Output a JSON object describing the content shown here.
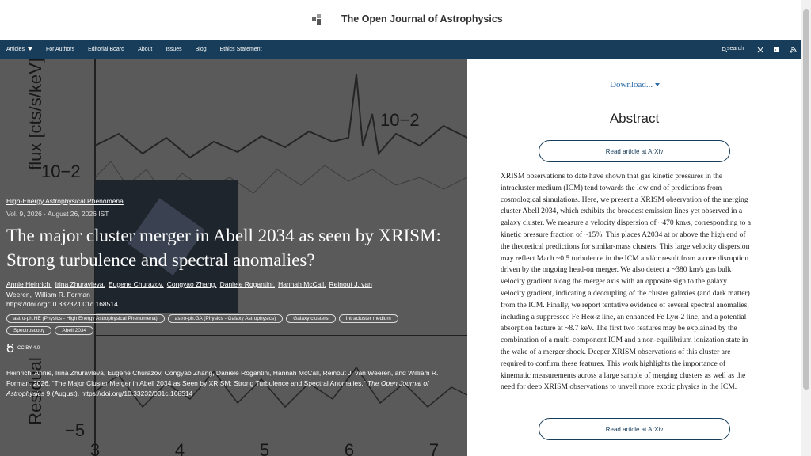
{
  "header": {
    "title": "The Open Journal of Astrophysics"
  },
  "nav": {
    "items": [
      "Articles",
      "For Authors",
      "Editorial Board",
      "About",
      "Issues",
      "Blog",
      "Ethics Statement"
    ],
    "search": "search"
  },
  "hero_plot": {
    "y_label": "flux [cts/s/keV]",
    "tick_upper": "10−2",
    "tick_left": "10−2",
    "residual_label": "Residual",
    "tick_residual": "−5",
    "x_ticks": [
      "3",
      "4",
      "5",
      "6",
      "7"
    ]
  },
  "article": {
    "category": "High-Energy Astrophysical Phenomena",
    "meta": "Vol. 9, 2026 · August 26, 2026 IST",
    "title": "The major cluster merger in Abell 2034 as seen by XRISM: Strong turbulence and spectral anomalies?",
    "authors": [
      "Annie Heinrich,",
      "Irina Zhuravleva,",
      "Eugene Churazov,",
      "Congyao Zhang,",
      "Daniele Rogantini,",
      "Hannah McCall,",
      "Reinout J. van Weeren,",
      "William R. Forman"
    ],
    "doi": "https://doi.org/10.33232/001c.168514",
    "tags": [
      "astro-ph.HE (Physics - High Energy Astrophysical Phenomena)",
      "astro-ph.GA (Physics - Galaxy Astrophysics)",
      "Galaxy clusters",
      "Intracluster medium",
      "Spectroscopy",
      "Abell 2034"
    ],
    "license": "CC BY 4.0",
    "citation": {
      "text": "Heinrich, Annie, Irina Zhuravleva, Eugene Churazov, Congyao Zhang, Daniele Rogantini, Hannah McCall, Reinout J. van Weeren, and William R. Forman. 2026. “The Major Cluster Merger in Abell 2034 as Seen by XRISM: Strong Turbulence and Spectral Anomalies.” ",
      "journal": "The Open Journal of Astrophysics",
      "issue": " 9 (August). ",
      "link": "https://doi.org/10.33232/001c.168514"
    }
  },
  "sidebar": {
    "download": "Download...",
    "abstract_heading": "Abstract",
    "read_button": "Read article at ArXiv",
    "abstract": "XRISM observations to date have shown that gas kinetic pressures in the intracluster medium (ICM) tend towards the low end of predictions from cosmological simulations. Here, we present a XRISM observation of the merging cluster Abell 2034, which exhibits the broadest emission lines yet observed in a galaxy cluster. We measure a velocity dispersion of ~470 km/s, corresponding to a kinetic pressure fraction of ~15%. This places A2034 at or above the high end of the theoretical predictions for similar-mass clusters. This large velocity dispersion may reflect Mach ~0.5 turbulence in the ICM and/or result from a core disruption driven by the ongoing head-on merger. We also detect a ~380 km/s gas bulk velocity gradient along the merger axis with an opposite sign to the galaxy velocity gradient, indicating a decoupling of the cluster galaxies (and dark matter) from the ICM. Finally, we report tentative evidence of several spectral anomalies, including a suppressed Fe Heα-z line, an enhanced Fe Lyα-2 line, and a potential absorption feature at ~8.7 keV. The first two features may be explained by the combination of a multi-component ICM and a non-equilibrium ionization state in the wake of a merger shock. Deeper XRISM observations of this cluster are required to confirm these features. This work highlights the importance of kinematic measurements across a large sample of merging clusters as well as the need for deep XRISM observations to unveil more exotic physics in the ICM."
  }
}
